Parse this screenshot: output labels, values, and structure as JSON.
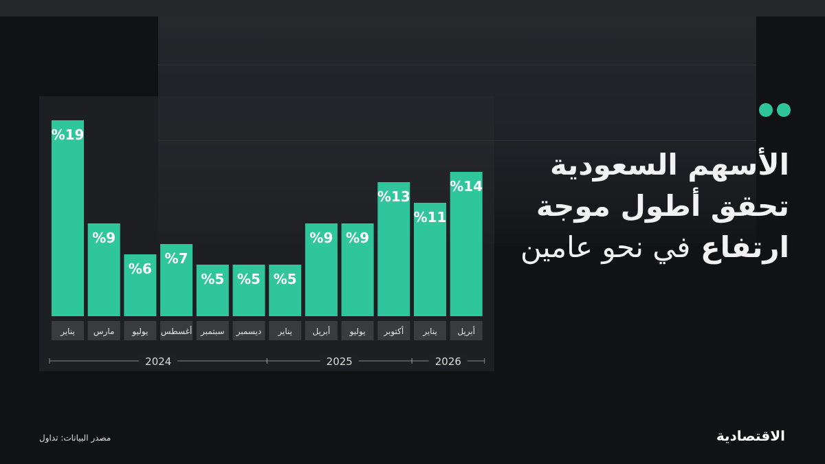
{
  "title": {
    "line1": "الأسهم السعودية",
    "line2": "تحقق أطول موجة",
    "line3_bold": "ارتفاع",
    "line3_light": "في نحو عامين"
  },
  "source": "مصدر البيانات: تداول",
  "logo": "الاقتصادية",
  "colors": {
    "bar": "#2fc69c",
    "label_bg": "#3a3b3e",
    "accent_dots": "#2fc69c"
  },
  "chart_data": {
    "type": "bar",
    "categories": [
      "يناير",
      "مارس",
      "يوليو",
      "أغسطس",
      "سبتمبر",
      "ديسمبر",
      "يناير",
      "أبريل",
      "يوليو",
      "أكتوبر",
      "يناير",
      "أبريل"
    ],
    "values": [
      19,
      9,
      6,
      7,
      5,
      5,
      5,
      9,
      9,
      13,
      11,
      14
    ],
    "value_labels": [
      "%19",
      "%9",
      "%6",
      "%7",
      "%5",
      "%5",
      "%5",
      "%9",
      "%9",
      "%13",
      "%11",
      "%14"
    ],
    "year_groups": [
      {
        "label": "2024",
        "count": 6
      },
      {
        "label": "2025",
        "count": 4
      },
      {
        "label": "2026",
        "count": 2
      }
    ],
    "ylim": [
      0,
      19
    ],
    "grid": false
  }
}
